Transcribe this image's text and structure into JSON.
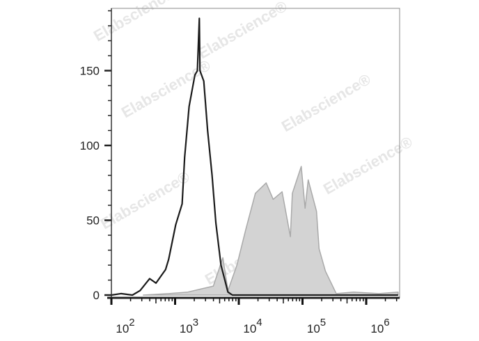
{
  "chart_data": {
    "type": "area",
    "title": "",
    "xlabel": "",
    "ylabel": "",
    "x_scale": "log",
    "xlim_log10": [
      2,
      6.5
    ],
    "ylim": [
      0,
      192
    ],
    "grid": false,
    "legend": "none",
    "x_ticks": [
      {
        "base": "10",
        "exp": "2",
        "value": 100
      },
      {
        "base": "10",
        "exp": "3",
        "value": 1000
      },
      {
        "base": "10",
        "exp": "4",
        "value": 10000
      },
      {
        "base": "10",
        "exp": "5",
        "value": 100000
      },
      {
        "base": "10",
        "exp": "6",
        "value": 1000000
      }
    ],
    "y_ticks": [
      "0",
      "50",
      "100",
      "150"
    ],
    "y_tick_values": [
      0,
      50,
      100,
      150
    ],
    "watermark": "Elabscience®",
    "series": [
      {
        "style": "outline",
        "color": "#1a1a1a",
        "x_log10": [
          2.0,
          2.15,
          2.33,
          2.45,
          2.6,
          2.7,
          2.85,
          2.9,
          3.01,
          3.11,
          3.15,
          3.22,
          3.31,
          3.35,
          3.38,
          3.39,
          3.45,
          3.51,
          3.58,
          3.64,
          3.72,
          3.83,
          3.9,
          4.0,
          6.5
        ],
        "values": [
          0,
          1,
          0,
          3,
          11,
          8,
          17,
          24,
          47,
          61,
          92,
          126,
          147,
          150,
          185,
          150,
          143,
          110,
          80,
          48,
          20,
          2,
          0,
          0,
          0
        ]
      },
      {
        "style": "filled",
        "color": "#a9a9a9",
        "fill": "#d3d3d3",
        "x_log10": [
          2.5,
          2.9,
          3.2,
          3.4,
          3.6,
          3.75,
          3.83,
          3.97,
          4.11,
          4.26,
          4.43,
          4.54,
          4.68,
          4.81,
          4.84,
          4.98,
          5.04,
          5.09,
          5.22,
          5.26,
          5.36,
          5.53,
          5.8,
          6.2,
          6.5
        ],
        "values": [
          0,
          1,
          2,
          4,
          6,
          25,
          3,
          20,
          44,
          68,
          75,
          64,
          69,
          39,
          68,
          86,
          58,
          77,
          56,
          31,
          16,
          1,
          2,
          1,
          2
        ]
      }
    ]
  }
}
